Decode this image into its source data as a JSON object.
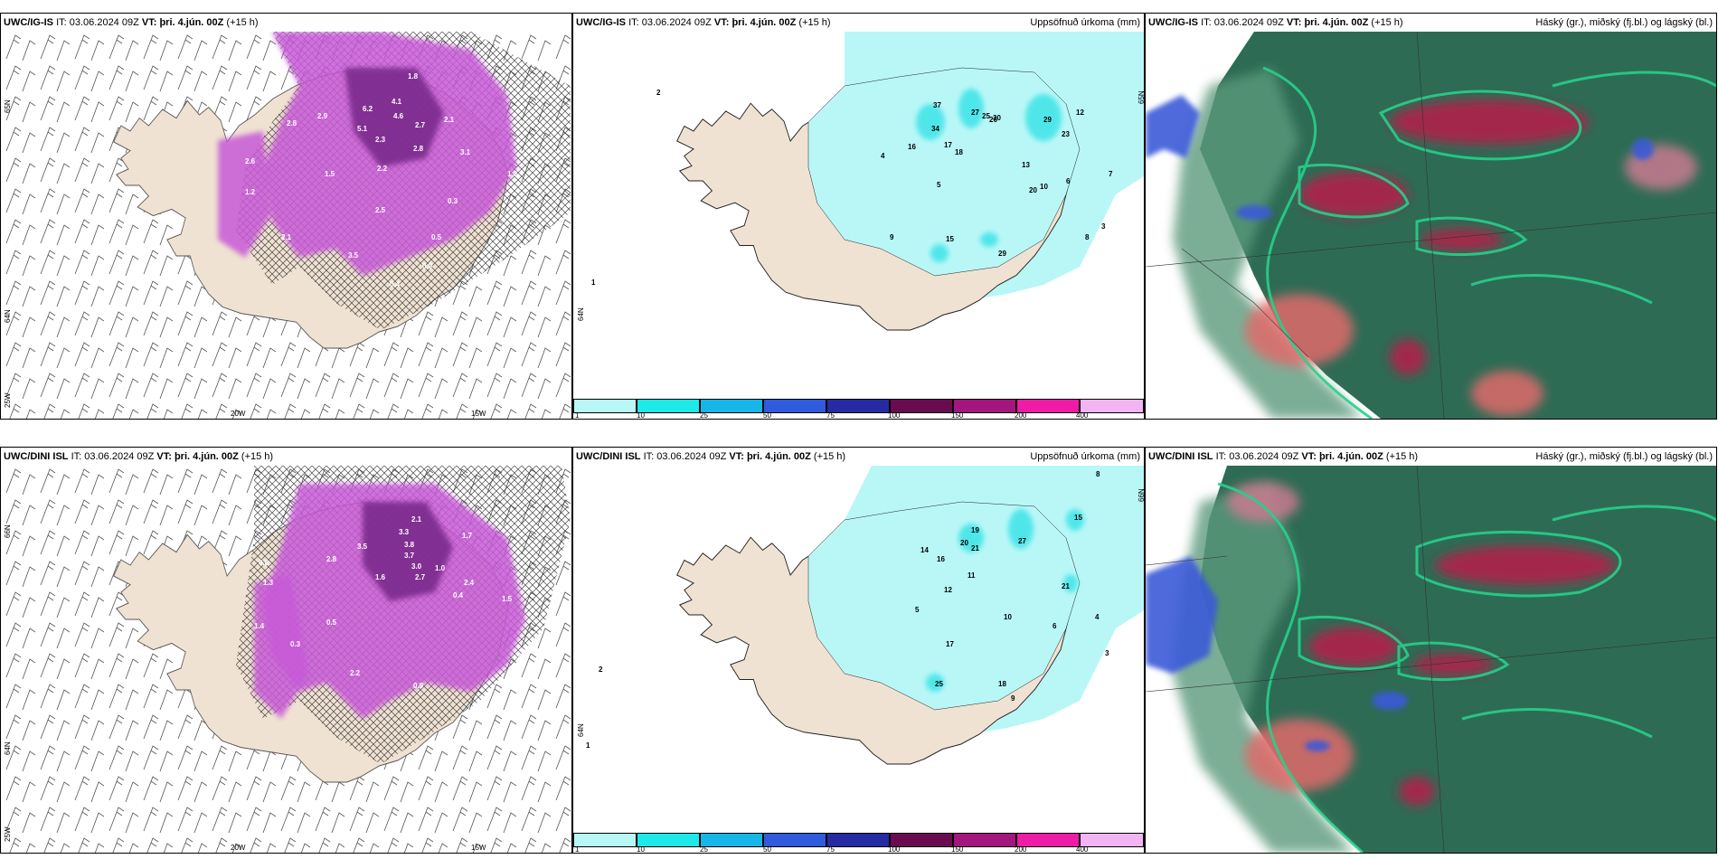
{
  "colors": {
    "land": "#f0e2d2",
    "precip_light": "#b9f7f7",
    "precip_mid": "#4fe6ea",
    "magenta": "#c85ad8",
    "magenta_dark": "#7a2c8c",
    "cloud_high": "#2e6b55",
    "cloud_mid_red": "#b81e4a",
    "cloud_low_blue": "#3b5ad8",
    "green_edge": "#27d08a"
  },
  "rows": [
    {
      "model": "UWC/IG-IS",
      "panels": [
        {
          "model": "UWC/IG-IS",
          "it_label": "IT:",
          "it_value": "03.06.2024 09Z",
          "vt_label": "VT:",
          "vt_value": "þri. 4.jún. 00Z",
          "lead": "(+15 h)",
          "right_title": "",
          "ticks": {
            "lat_top": "65N",
            "lat_mid": "64N",
            "lat_bot": "25W",
            "lon_a": "20W",
            "lon_b": "15W"
          },
          "values": [
            "4.1",
            "4.6",
            "6.2",
            "5.1",
            "2.7",
            "2.1",
            "3.1",
            "2.8",
            "2.3",
            "2.2",
            "1.5",
            "2.5",
            "2.1",
            "3.5",
            "0.4",
            "0.9",
            "0.5",
            "1.8",
            "0.3",
            "1.3",
            "2.9",
            "2.8",
            "1.2",
            "2.6"
          ]
        },
        {
          "model": "UWC/IG-IS",
          "it_label": "IT:",
          "it_value": "03.06.2024 09Z",
          "vt_label": "VT:",
          "vt_value": "þri. 4.jún. 00Z",
          "lead": "(+15 h)",
          "right_title": "Uppsöfnuð úrkoma (mm)",
          "ticks": {
            "lat_top": "65N",
            "lat_mid": "64N"
          },
          "values": [
            "37",
            "26",
            "34",
            "29",
            "23",
            "27",
            "25",
            "30",
            "20",
            "18",
            "13",
            "10",
            "6",
            "7",
            "5",
            "9",
            "15",
            "29",
            "8",
            "3",
            "4",
            "2",
            "1",
            "17",
            "16",
            "12"
          ],
          "colorbar": [
            "1",
            "10",
            "25",
            "50",
            "75",
            "100",
            "150",
            "200",
            "400"
          ]
        },
        {
          "model": "UWC/IG-IS",
          "it_label": "IT:",
          "it_value": "03.06.2024 09Z",
          "vt_label": "VT:",
          "vt_value": "þri. 4.jún. 00Z",
          "lead": "(+15 h)",
          "right_title": "Háský (gr.), miðský (fj.bl.) og lágský (bl.)"
        }
      ]
    },
    {
      "model": "UWC/DINI ISL",
      "panels": [
        {
          "model": "UWC/DINI ISL",
          "it_label": "IT:",
          "it_value": "03.06.2024 09Z",
          "vt_label": "VT:",
          "vt_value": "þri. 4.jún. 00Z",
          "lead": "(+15 h)",
          "right_title": "",
          "ticks": {
            "lat_top": "66N",
            "lat_mid": "64N",
            "lat_bot": "25W",
            "lon_a": "20W",
            "lon_b": "15W"
          },
          "values": [
            "3.3",
            "3.8",
            "3.7",
            "3.0",
            "2.7",
            "2.1",
            "3.5",
            "1.6",
            "1.0",
            "2.4",
            "1.5",
            "0.5",
            "2.2",
            "0.9",
            "0.4",
            "1.4",
            "1.3",
            "0.8",
            "0.3",
            "1.7",
            "2.8"
          ]
        },
        {
          "model": "UWC/DINI ISL",
          "it_label": "IT:",
          "it_value": "03.06.2024 09Z",
          "vt_label": "VT:",
          "vt_value": "þri. 4.jún. 00Z",
          "lead": "(+15 h)",
          "right_title": "Uppsöfnuð úrkoma (mm)",
          "ticks": {
            "lat_top": "66N",
            "lat_mid": "64N"
          },
          "values": [
            "27",
            "19",
            "21",
            "20",
            "15",
            "14",
            "16",
            "11",
            "12",
            "10",
            "17",
            "25",
            "18",
            "9",
            "6",
            "5",
            "4",
            "3",
            "2",
            "1",
            "8",
            "21"
          ],
          "colorbar": [
            "1",
            "10",
            "25",
            "50",
            "75",
            "100",
            "150",
            "200",
            "400"
          ]
        },
        {
          "model": "UWC/DINI ISL",
          "it_label": "IT:",
          "it_value": "03.06.2024 09Z",
          "vt_label": "VT:",
          "vt_value": "þri. 4.jún. 00Z",
          "lead": "(+15 h)",
          "right_title": "Háský (gr.), miðský (fj.bl.) og lágský (bl.)"
        }
      ]
    }
  ]
}
